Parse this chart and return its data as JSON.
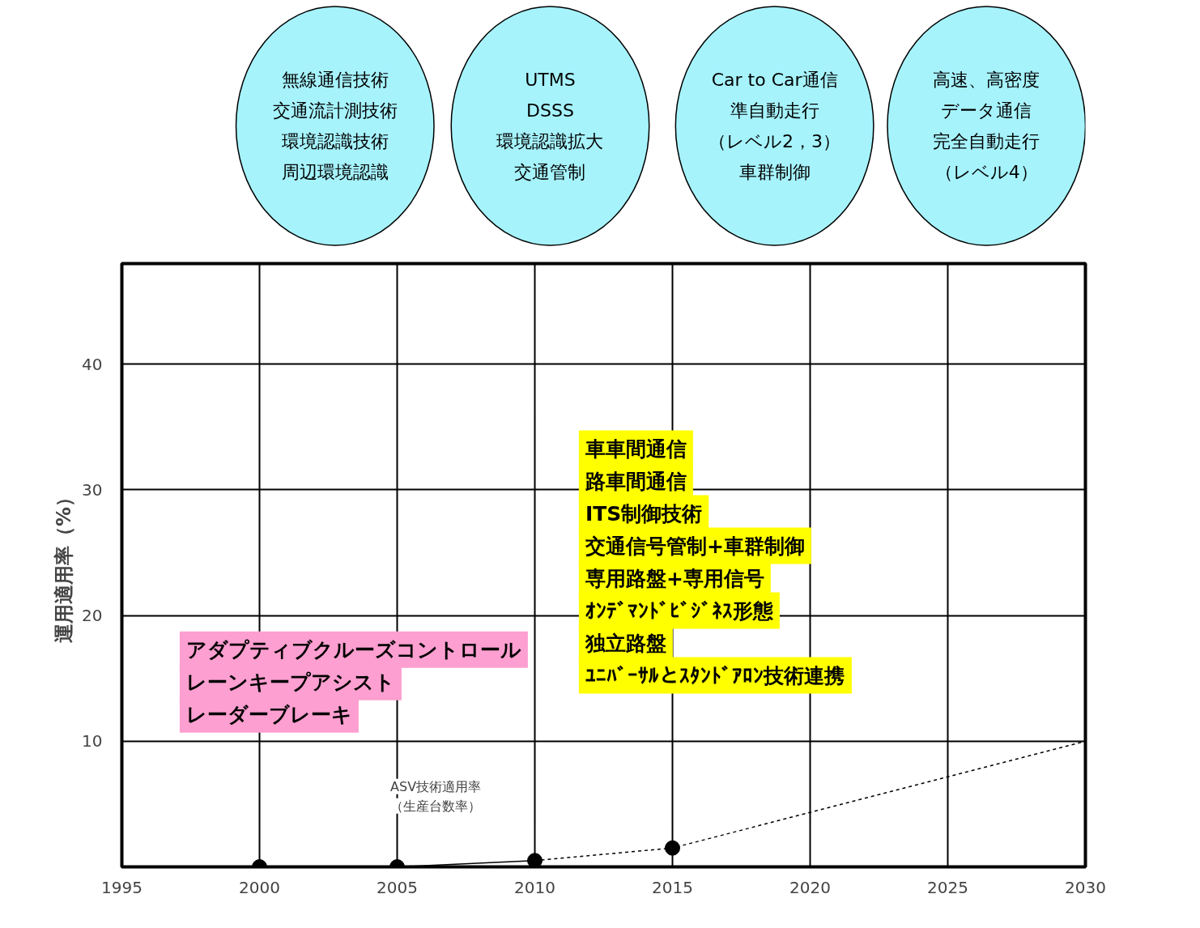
{
  "chart_data": {
    "type": "line",
    "ylabel": "運用適用率（%）",
    "xlim": [
      1995,
      2030
    ],
    "xticks": [
      1995,
      2000,
      2005,
      2010,
      2015,
      2020,
      2025,
      2030
    ],
    "ylim": [
      0,
      48
    ],
    "yticks": [
      10,
      20,
      30,
      40
    ],
    "grid": true,
    "series": [
      {
        "type": "scatter",
        "x": [
          2000,
          2005,
          2010,
          2015
        ],
        "values": [
          0,
          0,
          0.5,
          1.5
        ],
        "color": "#000000",
        "marker": "circle"
      },
      {
        "x": [
          2005,
          2010
        ],
        "values": [
          0,
          0.5
        ],
        "color": "#000000",
        "line_style": "solid"
      },
      {
        "x": [
          2010,
          2015,
          2030
        ],
        "values": [
          0.5,
          1.5,
          10
        ],
        "color": "#000000",
        "line_style": "dashed"
      }
    ],
    "annotations": [
      "無線通信技術",
      "交通流計測技術",
      "環境認識技術",
      "周辺環境認識",
      "UTMS",
      "DSSS",
      "環境認識拡大",
      "交通管制",
      "Car to Car通信",
      "準自動走行",
      "（レベル2，3）",
      "車群制御",
      "高速、高密度",
      "データ通信",
      "完全自動走行",
      "（レベル4）",
      "アダプティブクルーズコントロール",
      "レーンキープアシスト",
      "レーダーブレーキ",
      "車車間通信",
      "路車間通信",
      "ITS制御技術",
      "交通信号管制+車群制御",
      "専用路盤+専用信号",
      "ｵﾝﾃﾞﾏﾝﾄﾞﾋﾞｼﾞﾈｽ形態",
      "独立路盤",
      "ﾕﾆﾊﾞｰｻﾙとｽﾀﾝﾄﾞｱﾛﾝ技術連携",
      "ASV技術適用率",
      "（生産台数率）"
    ]
  }
}
